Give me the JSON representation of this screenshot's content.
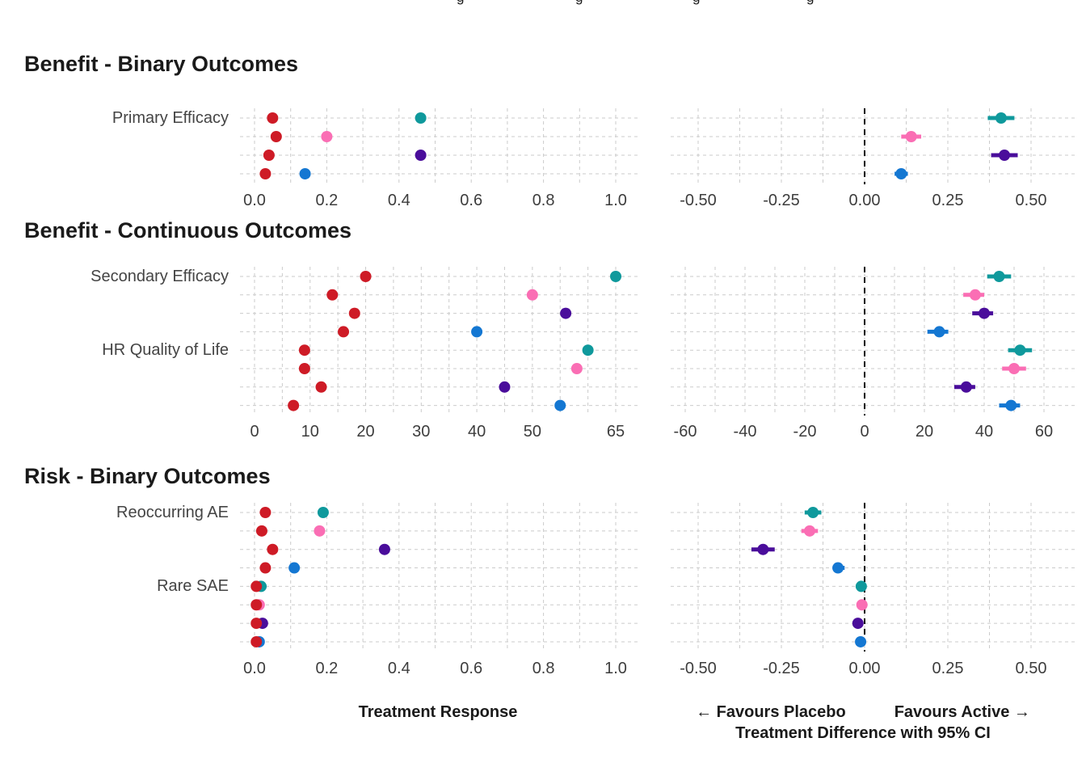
{
  "legend": {
    "clipped": true,
    "note": "legend cut off at top edge of screenshot; only descender tips visible",
    "glyphs": [
      "g",
      "g",
      "g",
      "g"
    ]
  },
  "colors": {
    "series": {
      "reference": "#CE1B26",
      "teal": "#0F999C",
      "pink": "#FA6EB4",
      "purple": "#4A0D9B",
      "blue": "#1477D2"
    },
    "gridline": "#CBCBCB",
    "zero_line": "#000000",
    "section_title": "#1a1a1a",
    "row_label": "#444444",
    "tick_label": "#3d3d3d"
  },
  "sections": [
    {
      "title": "Benefit - Binary Outcomes"
    },
    {
      "title": "Benefit - Continuous Outcomes"
    },
    {
      "title": "Risk - Binary Outcomes"
    }
  ],
  "captions": {
    "response_axis": "Treatment Response",
    "favours_left": "← Favours Placebo",
    "favours_right": "Favours Active →",
    "difference_axis": "Treatment Difference with 95% CI"
  },
  "chart_data": [
    {
      "id": "benefit-binary-response",
      "type": "scatter",
      "section": 0,
      "side": "response",
      "section_title": "Benefit - Binary Outcomes",
      "xlabel": "Treatment Response",
      "x_range": [
        0,
        1
      ],
      "grid": {
        "from": 0,
        "to": 1.0,
        "step": 0.1
      },
      "x_ticks": [
        0,
        0.2,
        0.4,
        0.6,
        0.8,
        1.0
      ],
      "x_tick_labels": [
        "0.0",
        "0.2",
        "0.4",
        "0.6",
        "0.8",
        "1.0"
      ],
      "zero_line": false,
      "rows": [
        {
          "label": "Primary Efficacy",
          "points": [
            {
              "series": "reference",
              "x": 0.05
            },
            {
              "series": "teal",
              "x": 0.46
            }
          ]
        },
        {
          "label": "",
          "points": [
            {
              "series": "reference",
              "x": 0.06
            },
            {
              "series": "pink",
              "x": 0.2
            }
          ]
        },
        {
          "label": "",
          "points": [
            {
              "series": "reference",
              "x": 0.04
            },
            {
              "series": "purple",
              "x": 0.46
            }
          ]
        },
        {
          "label": "",
          "points": [
            {
              "series": "reference",
              "x": 0.03
            },
            {
              "series": "blue",
              "x": 0.14
            }
          ]
        }
      ]
    },
    {
      "id": "benefit-binary-difference",
      "type": "scatter",
      "section": 0,
      "side": "difference",
      "section_title": "Benefit - Binary Outcomes",
      "xlabel": "Treatment Difference with 95% CI",
      "x_range": [
        -0.5,
        0.5
      ],
      "grid": {
        "from": -0.5,
        "to": 0.5,
        "step": 0.125
      },
      "x_ticks": [
        -0.5,
        -0.25,
        0,
        0.25,
        0.5
      ],
      "x_tick_labels": [
        "-0.50",
        "-0.25",
        "0.00",
        "0.25",
        "0.50"
      ],
      "zero_line": true,
      "rows": [
        {
          "label": "",
          "points": [
            {
              "series": "teal",
              "x": 0.41,
              "ci": [
                0.37,
                0.45
              ]
            }
          ]
        },
        {
          "label": "",
          "points": [
            {
              "series": "pink",
              "x": 0.14,
              "ci": [
                0.11,
                0.17
              ]
            }
          ]
        },
        {
          "label": "",
          "points": [
            {
              "series": "purple",
              "x": 0.42,
              "ci": [
                0.38,
                0.46
              ]
            }
          ]
        },
        {
          "label": "",
          "points": [
            {
              "series": "blue",
              "x": 0.11,
              "ci": [
                0.09,
                0.13
              ]
            }
          ]
        }
      ]
    },
    {
      "id": "benefit-continuous-response",
      "type": "scatter",
      "section": 1,
      "side": "response",
      "section_title": "Benefit - Continuous Outcomes",
      "xlabel": "Treatment Response",
      "x_range": [
        0,
        65
      ],
      "grid": {
        "from": 0,
        "to": 65,
        "step": 5
      },
      "x_ticks": [
        0,
        10,
        20,
        30,
        40,
        50,
        65
      ],
      "x_tick_labels": [
        "0",
        "10",
        "20",
        "30",
        "40",
        "50",
        "65"
      ],
      "zero_line": false,
      "rows": [
        {
          "label": "Secondary Efficacy",
          "points": [
            {
              "series": "reference",
              "x": 20
            },
            {
              "series": "teal",
              "x": 65
            }
          ]
        },
        {
          "label": "",
          "points": [
            {
              "series": "reference",
              "x": 14
            },
            {
              "series": "pink",
              "x": 50
            }
          ]
        },
        {
          "label": "",
          "points": [
            {
              "series": "reference",
              "x": 18
            },
            {
              "series": "purple",
              "x": 56
            }
          ]
        },
        {
          "label": "",
          "points": [
            {
              "series": "reference",
              "x": 16
            },
            {
              "series": "blue",
              "x": 40
            }
          ]
        },
        {
          "label": "HR Quality of Life",
          "points": [
            {
              "series": "reference",
              "x": 9
            },
            {
              "series": "teal",
              "x": 60
            }
          ]
        },
        {
          "label": "",
          "points": [
            {
              "series": "reference",
              "x": 9
            },
            {
              "series": "pink",
              "x": 58
            }
          ]
        },
        {
          "label": "",
          "points": [
            {
              "series": "reference",
              "x": 12
            },
            {
              "series": "purple",
              "x": 45
            }
          ]
        },
        {
          "label": "",
          "points": [
            {
              "series": "reference",
              "x": 7
            },
            {
              "series": "blue",
              "x": 55
            }
          ]
        }
      ]
    },
    {
      "id": "benefit-continuous-difference",
      "type": "scatter",
      "section": 1,
      "side": "difference",
      "section_title": "Benefit - Continuous Outcomes",
      "xlabel": "Treatment Difference with 95% CI",
      "x_range": [
        -60,
        60
      ],
      "grid": {
        "from": -60,
        "to": 60,
        "step": 10
      },
      "x_ticks": [
        -60,
        -40,
        -20,
        0,
        20,
        40,
        60
      ],
      "x_tick_labels": [
        "-60",
        "-40",
        "-20",
        "0",
        "20",
        "40",
        "60"
      ],
      "zero_line": true,
      "rows": [
        {
          "label": "",
          "points": [
            {
              "series": "teal",
              "x": 45,
              "ci": [
                41,
                49
              ]
            }
          ]
        },
        {
          "label": "",
          "points": [
            {
              "series": "pink",
              "x": 37,
              "ci": [
                33,
                40
              ]
            }
          ]
        },
        {
          "label": "",
          "points": [
            {
              "series": "purple",
              "x": 40,
              "ci": [
                36,
                43
              ]
            }
          ]
        },
        {
          "label": "",
          "points": [
            {
              "series": "blue",
              "x": 25,
              "ci": [
                21,
                28
              ]
            }
          ]
        },
        {
          "label": "",
          "points": [
            {
              "series": "teal",
              "x": 52,
              "ci": [
                48,
                56
              ]
            }
          ]
        },
        {
          "label": "",
          "points": [
            {
              "series": "pink",
              "x": 50,
              "ci": [
                46,
                54
              ]
            }
          ]
        },
        {
          "label": "",
          "points": [
            {
              "series": "purple",
              "x": 34,
              "ci": [
                30,
                37
              ]
            }
          ]
        },
        {
          "label": "",
          "points": [
            {
              "series": "blue",
              "x": 49,
              "ci": [
                45,
                52
              ]
            }
          ]
        }
      ]
    },
    {
      "id": "risk-binary-response",
      "type": "scatter",
      "section": 2,
      "side": "response",
      "section_title": "Risk - Binary Outcomes",
      "xlabel": "Treatment Response",
      "x_range": [
        0,
        1
      ],
      "grid": {
        "from": 0,
        "to": 1.0,
        "step": 0.1
      },
      "x_ticks": [
        0,
        0.2,
        0.4,
        0.6,
        0.8,
        1.0
      ],
      "x_tick_labels": [
        "0.0",
        "0.2",
        "0.4",
        "0.6",
        "0.8",
        "1.0"
      ],
      "zero_line": false,
      "rows": [
        {
          "label": "Reoccurring AE",
          "points": [
            {
              "series": "reference",
              "x": 0.03
            },
            {
              "series": "teal",
              "x": 0.19
            }
          ]
        },
        {
          "label": "",
          "points": [
            {
              "series": "reference",
              "x": 0.02
            },
            {
              "series": "pink",
              "x": 0.18
            }
          ]
        },
        {
          "label": "",
          "points": [
            {
              "series": "reference",
              "x": 0.05
            },
            {
              "series": "purple",
              "x": 0.36
            }
          ]
        },
        {
          "label": "",
          "points": [
            {
              "series": "reference",
              "x": 0.03
            },
            {
              "series": "blue",
              "x": 0.11
            }
          ]
        },
        {
          "label": "Rare SAE",
          "points": [
            {
              "series": "reference",
              "x": 0.005
            },
            {
              "series": "teal",
              "x": 0.018
            }
          ]
        },
        {
          "label": "",
          "points": [
            {
              "series": "reference",
              "x": 0.005
            },
            {
              "series": "pink",
              "x": 0.013
            }
          ]
        },
        {
          "label": "",
          "points": [
            {
              "series": "reference",
              "x": 0.005
            },
            {
              "series": "purple",
              "x": 0.022
            }
          ]
        },
        {
          "label": "",
          "points": [
            {
              "series": "reference",
              "x": 0.005
            },
            {
              "series": "blue",
              "x": 0.013
            }
          ]
        }
      ]
    },
    {
      "id": "risk-binary-difference",
      "type": "scatter",
      "section": 2,
      "side": "difference",
      "section_title": "Risk - Binary Outcomes",
      "xlabel": "Treatment Difference with 95% CI",
      "x_range": [
        -0.5,
        0.5
      ],
      "grid": {
        "from": -0.5,
        "to": 0.5,
        "step": 0.125
      },
      "x_ticks": [
        -0.5,
        -0.25,
        0,
        0.25,
        0.5
      ],
      "x_tick_labels": [
        "-0.50",
        "-0.25",
        "0.00",
        "0.25",
        "0.50"
      ],
      "zero_line": true,
      "rows": [
        {
          "label": "",
          "points": [
            {
              "series": "teal",
              "x": -0.155,
              "ci": [
                -0.18,
                -0.13
              ]
            }
          ]
        },
        {
          "label": "",
          "points": [
            {
              "series": "pink",
              "x": -0.165,
              "ci": [
                -0.19,
                -0.14
              ]
            }
          ]
        },
        {
          "label": "",
          "points": [
            {
              "series": "purple",
              "x": -0.305,
              "ci": [
                -0.34,
                -0.27
              ]
            }
          ]
        },
        {
          "label": "",
          "points": [
            {
              "series": "blue",
              "x": -0.08,
              "ci": [
                -0.095,
                -0.06
              ]
            }
          ]
        },
        {
          "label": "",
          "points": [
            {
              "series": "teal",
              "x": -0.01,
              "ci": [
                -0.018,
                -0.002
              ]
            }
          ]
        },
        {
          "label": "",
          "points": [
            {
              "series": "pink",
              "x": -0.008,
              "ci": [
                -0.014,
                -0.002
              ]
            }
          ]
        },
        {
          "label": "",
          "points": [
            {
              "series": "purple",
              "x": -0.02,
              "ci": [
                -0.03,
                -0.01
              ]
            }
          ]
        },
        {
          "label": "",
          "points": [
            {
              "series": "blue",
              "x": -0.012,
              "ci": [
                -0.02,
                -0.004
              ]
            }
          ]
        }
      ]
    }
  ]
}
